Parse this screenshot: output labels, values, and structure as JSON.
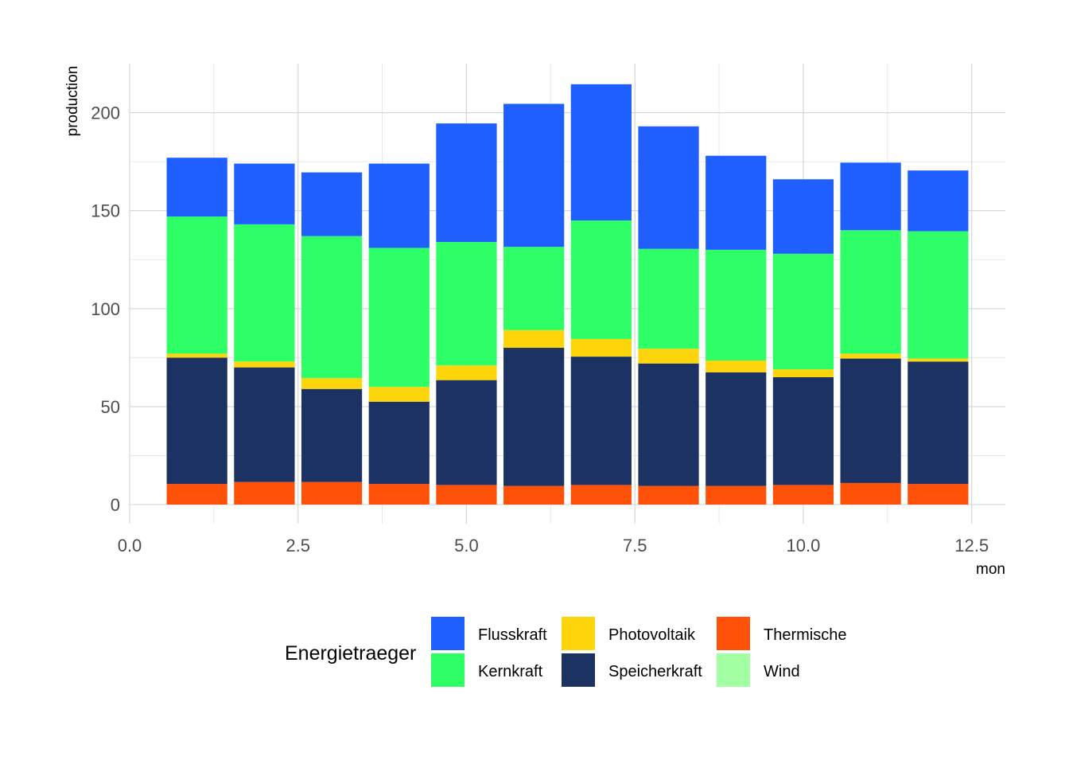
{
  "chart_data": {
    "type": "bar",
    "stacked": true,
    "title": "",
    "xlabel": "mon",
    "ylabel": "production",
    "xlim": [
      0,
      13
    ],
    "ylim": [
      0,
      225
    ],
    "x_ticks": [
      "0.0",
      "2.5",
      "5.0",
      "7.5",
      "10.0",
      "12.5"
    ],
    "y_ticks": [
      "0",
      "50",
      "100",
      "150",
      "200"
    ],
    "x": [
      1,
      2,
      3,
      4,
      5,
      6,
      7,
      8,
      9,
      10,
      11,
      12
    ],
    "series": [
      {
        "name": "Thermische",
        "color": "#FF5208",
        "values": [
          10.5,
          11.5,
          11.5,
          10.5,
          10,
          9.5,
          10,
          9.5,
          9.5,
          10,
          11,
          10.5
        ]
      },
      {
        "name": "Speicherkraft",
        "color": "#1C3262",
        "values": [
          64.5,
          58.5,
          47.5,
          42,
          53.5,
          70.5,
          65.5,
          62.5,
          58,
          55,
          63.5,
          62.5
        ]
      },
      {
        "name": "Photovoltaik",
        "color": "#FDD50A",
        "values": [
          2,
          3,
          5.5,
          7.5,
          7.5,
          9,
          9,
          7.5,
          6,
          4,
          2.5,
          1.5
        ]
      },
      {
        "name": "Wind",
        "color": "#A2FFA2",
        "values": [
          0,
          0,
          0,
          0,
          0,
          0,
          0,
          0,
          0,
          0,
          0,
          0
        ]
      },
      {
        "name": "Kernkraft",
        "color": "#2EFF67",
        "values": [
          70,
          70,
          72.5,
          71,
          63,
          42.5,
          60.5,
          51,
          56.5,
          59,
          63,
          65
        ]
      },
      {
        "name": "Flusskraft",
        "color": "#1F5EFF",
        "values": [
          30,
          31,
          32.5,
          43,
          60.5,
          73,
          69.5,
          62.5,
          48,
          38,
          34.5,
          31
        ]
      }
    ],
    "legend": {
      "title": "Energietraeger",
      "position": "bottom",
      "entries": [
        {
          "label": "Flusskraft",
          "color": "#1F5EFF"
        },
        {
          "label": "Kernkraft",
          "color": "#2EFF67"
        },
        {
          "label": "Photovoltaik",
          "color": "#FDD50A"
        },
        {
          "label": "Speicherkraft",
          "color": "#1C3262"
        },
        {
          "label": "Thermische",
          "color": "#FF5208"
        },
        {
          "label": "Wind",
          "color": "#A2FFA2"
        }
      ]
    }
  }
}
